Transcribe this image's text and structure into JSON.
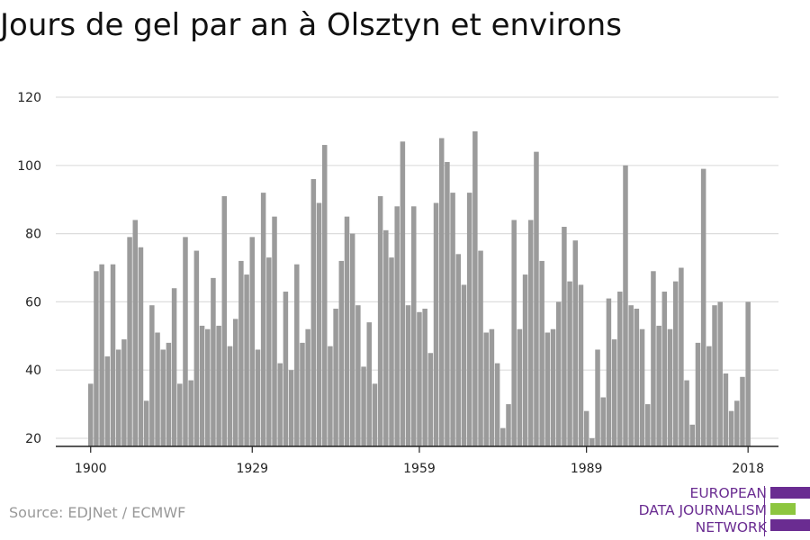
{
  "title": "Jours de gel par an à Olsztyn et environs",
  "source": "Source: EDJNet / ECMWF",
  "logo": {
    "lines": [
      "EUROPEAN",
      "DATA JOURNALISM",
      "NETWORK"
    ],
    "colors": {
      "purple": "#6a2c91",
      "green": "#8dc63f"
    }
  },
  "colors": {
    "bar": "#9b9b9b",
    "grid": "#dddddd",
    "axis": "#222222"
  },
  "chart_data": {
    "type": "bar",
    "title": "Jours de gel par an à Olsztyn et environs",
    "xlabel": "",
    "ylabel": "",
    "ylim": [
      20,
      120
    ],
    "yticks": [
      20,
      40,
      60,
      80,
      100,
      120
    ],
    "xticks": [
      1900,
      1929,
      1959,
      1989,
      2018
    ],
    "grid": true,
    "categories": [
      1900,
      1901,
      1902,
      1903,
      1904,
      1905,
      1906,
      1907,
      1908,
      1909,
      1910,
      1911,
      1912,
      1913,
      1914,
      1915,
      1916,
      1917,
      1918,
      1919,
      1920,
      1921,
      1922,
      1923,
      1924,
      1925,
      1926,
      1927,
      1928,
      1929,
      1930,
      1931,
      1932,
      1933,
      1934,
      1935,
      1936,
      1937,
      1938,
      1939,
      1940,
      1941,
      1942,
      1943,
      1944,
      1945,
      1946,
      1947,
      1948,
      1949,
      1950,
      1951,
      1952,
      1953,
      1954,
      1955,
      1956,
      1957,
      1958,
      1959,
      1960,
      1961,
      1962,
      1963,
      1964,
      1965,
      1966,
      1967,
      1968,
      1969,
      1970,
      1971,
      1972,
      1973,
      1974,
      1975,
      1976,
      1977,
      1978,
      1979,
      1980,
      1981,
      1982,
      1983,
      1984,
      1985,
      1986,
      1987,
      1988,
      1989,
      1990,
      1991,
      1992,
      1993,
      1994,
      1995,
      1996,
      1997,
      1998,
      1999,
      2000,
      2001,
      2002,
      2003,
      2004,
      2005,
      2006,
      2007,
      2008,
      2009,
      2010,
      2011,
      2012,
      2013,
      2014,
      2015,
      2016,
      2017,
      2018
    ],
    "values": [
      36,
      69,
      71,
      44,
      71,
      46,
      49,
      79,
      84,
      76,
      31,
      59,
      51,
      46,
      48,
      64,
      36,
      79,
      37,
      75,
      53,
      52,
      67,
      53,
      91,
      47,
      55,
      72,
      68,
      79,
      46,
      92,
      73,
      85,
      42,
      63,
      40,
      71,
      48,
      52,
      96,
      89,
      106,
      47,
      58,
      72,
      85,
      80,
      59,
      41,
      54,
      36,
      91,
      81,
      73,
      88,
      107,
      59,
      88,
      57,
      58,
      45,
      89,
      108,
      101,
      92,
      74,
      65,
      92,
      110,
      75,
      51,
      52,
      42,
      23,
      30,
      84,
      52,
      68,
      84,
      104,
      72,
      51,
      52,
      60,
      82,
      66,
      78,
      65,
      28,
      20,
      46,
      32,
      61,
      49,
      63,
      100,
      59,
      58,
      52,
      30,
      69,
      53,
      63,
      52,
      66,
      70,
      37,
      24,
      48,
      99,
      47,
      59,
      60,
      39,
      28,
      31,
      38,
      60
    ]
  }
}
